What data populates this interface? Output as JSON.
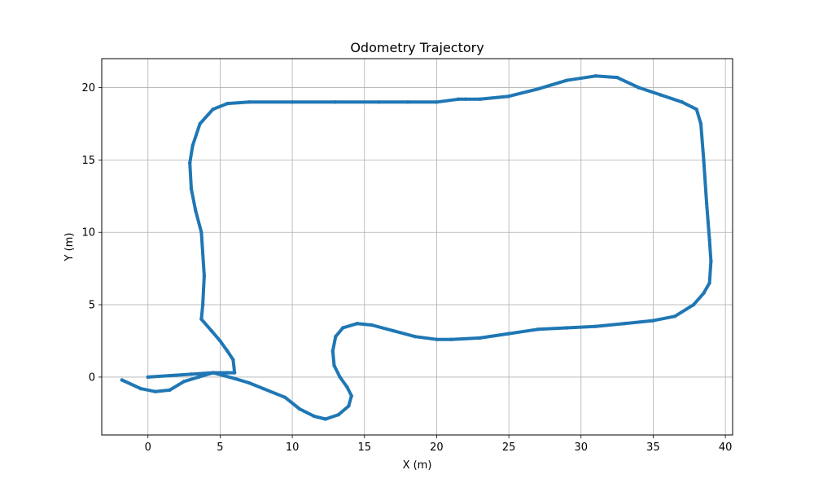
{
  "chart_data": {
    "type": "line",
    "title": "Odometry Trajectory",
    "xlabel": "X (m)",
    "ylabel": "Y (m)",
    "xlim": [
      -3.2,
      40.5
    ],
    "ylim": [
      -4.0,
      22.0
    ],
    "xticks": [
      0,
      5,
      10,
      15,
      20,
      25,
      30,
      35,
      40
    ],
    "yticks": [
      0,
      5,
      10,
      15,
      20
    ],
    "xtick_labels": [
      "0",
      "5",
      "10",
      "15",
      "20",
      "25",
      "30",
      "35",
      "40"
    ],
    "ytick_labels": [
      "0",
      "5",
      "10",
      "15",
      "20"
    ],
    "grid": true,
    "legend": "none",
    "series": [
      {
        "color": "#1f77b4",
        "x": [
          0.0,
          1.5,
          3.0,
          4.5,
          5.5,
          6.0,
          5.9,
          5.5,
          5.0,
          4.4,
          3.7,
          3.8,
          3.9,
          3.7,
          3.3,
          3.0,
          2.9,
          3.1,
          3.6,
          4.5,
          5.5,
          7.0,
          10.0,
          13.0,
          16.0,
          18.0,
          20.0,
          21.5,
          22.0,
          23.0,
          25.0,
          27.0,
          29.0,
          31.0,
          32.5,
          34.0,
          35.5,
          37.0,
          38.0,
          38.3,
          38.5,
          38.7,
          38.9,
          39.0,
          38.9,
          38.5,
          37.8,
          36.5,
          35.0,
          33.0,
          31.0,
          29.0,
          27.0,
          25.0,
          23.0,
          21.0,
          20.0,
          18.5,
          17.0,
          15.5,
          14.5,
          13.5,
          13.0,
          12.8,
          12.9,
          13.3,
          13.8,
          14.1,
          13.9,
          13.2,
          12.3,
          11.5,
          10.5,
          9.5,
          8.0,
          7.0,
          6.0,
          4.5,
          3.5,
          2.5,
          1.5,
          0.5,
          -0.5,
          -1.8
        ],
        "y": [
          0.0,
          0.1,
          0.2,
          0.3,
          0.3,
          0.3,
          1.2,
          1.8,
          2.5,
          3.2,
          4.0,
          5.0,
          7.0,
          10.0,
          11.5,
          13.0,
          14.8,
          16.0,
          17.5,
          18.5,
          18.9,
          19.0,
          19.0,
          19.0,
          19.0,
          19.0,
          19.0,
          19.2,
          19.2,
          19.2,
          19.4,
          19.9,
          20.5,
          20.8,
          20.7,
          20.0,
          19.5,
          19.0,
          18.5,
          17.5,
          15.0,
          12.0,
          9.5,
          8.0,
          6.5,
          5.8,
          5.0,
          4.2,
          3.9,
          3.7,
          3.5,
          3.4,
          3.3,
          3.0,
          2.7,
          2.6,
          2.6,
          2.8,
          3.2,
          3.6,
          3.7,
          3.4,
          2.8,
          1.8,
          0.8,
          0.0,
          -0.7,
          -1.3,
          -2.0,
          -2.6,
          -2.9,
          -2.7,
          -2.2,
          -1.4,
          -0.8,
          -0.4,
          -0.1,
          0.3,
          0.0,
          -0.3,
          -0.9,
          -1.0,
          -0.8,
          -0.2
        ]
      }
    ]
  }
}
